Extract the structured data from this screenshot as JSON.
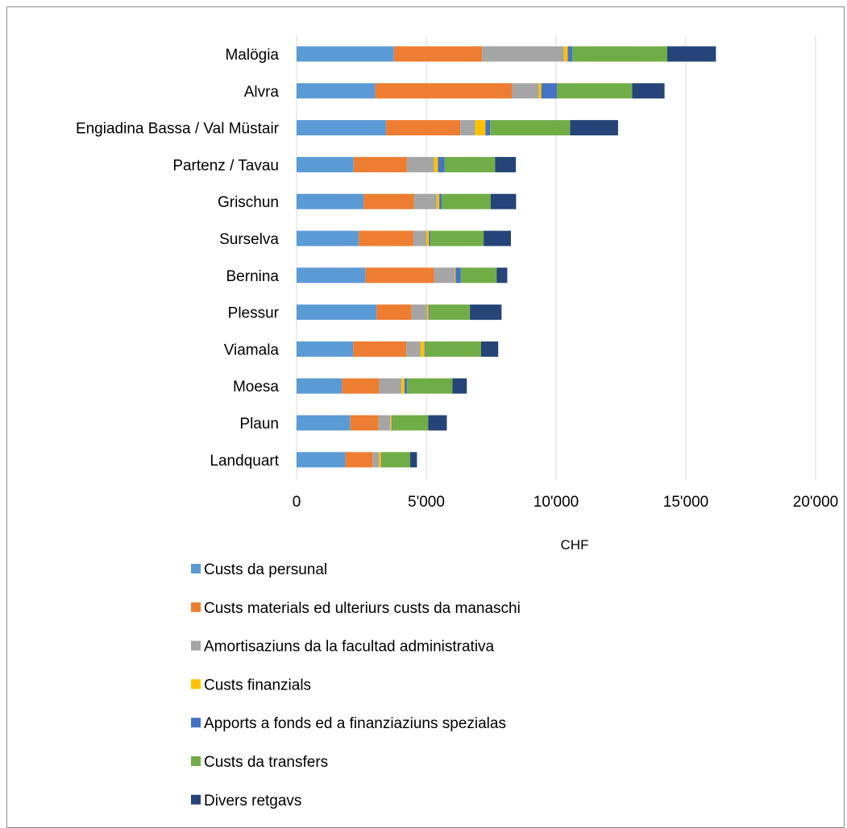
{
  "chart_data": {
    "type": "bar",
    "orientation": "horizontal",
    "stacked": true,
    "categories": [
      "Malögia",
      "Alvra",
      "Engiadina Bassa / Val Müstair",
      "Partenz / Tavau",
      "Grischun",
      "Surselva",
      "Bernina",
      "Plessur",
      "Viamala",
      "Moesa",
      "Plaun",
      "Landquart"
    ],
    "series": [
      {
        "name": "Custs da persunal",
        "color": "#5B9BD5",
        "values": [
          3750,
          3030,
          3450,
          2200,
          2580,
          2400,
          2650,
          3080,
          2180,
          1750,
          2070,
          1880
        ]
      },
      {
        "name": "Custs materials ed ulteriurs custs da manaschi",
        "color": "#ED7D31",
        "values": [
          3400,
          5280,
          2860,
          2050,
          1940,
          2100,
          2650,
          1350,
          2050,
          1430,
          1090,
          1050
        ]
      },
      {
        "name": "Amortisaziuns da la facultad administrativa",
        "color": "#A5A5A5",
        "values": [
          3150,
          1020,
          570,
          1050,
          880,
          500,
          800,
          600,
          550,
          860,
          450,
          250
        ]
      },
      {
        "name": "Custs finanzials",
        "color": "#FFC000",
        "values": [
          150,
          100,
          400,
          150,
          100,
          100,
          30,
          60,
          150,
          120,
          50,
          80
        ]
      },
      {
        "name": "Apports a fonds ed a finanziaziuns spezialas",
        "color": "#4472C4",
        "values": [
          180,
          600,
          180,
          250,
          100,
          60,
          200,
          40,
          30,
          100,
          30,
          20
        ]
      },
      {
        "name": "Custs da transfers",
        "color": "#70AD47",
        "values": [
          3650,
          2900,
          3080,
          1950,
          1880,
          2050,
          1380,
          1550,
          2150,
          1750,
          1380,
          1100
        ]
      },
      {
        "name": "Divers retgavs",
        "color": "#264478",
        "values": [
          1880,
          1250,
          1850,
          800,
          980,
          1050,
          410,
          1220,
          660,
          550,
          720,
          260
        ]
      }
    ],
    "xlim": [
      0,
      20000
    ],
    "xticks": [
      0,
      5000,
      10000,
      15000,
      20000
    ],
    "tick_labels": [
      "0",
      "5'000",
      "10'000",
      "15'000",
      "20'000"
    ],
    "xlabel": "CHF",
    "ylabel": "",
    "grid": "vertical major gridlines",
    "legend_position": "bottom"
  }
}
